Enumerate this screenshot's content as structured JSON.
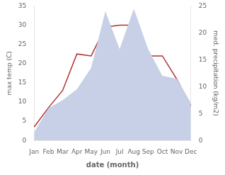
{
  "chart_data": {
    "type": "line",
    "categories": [
      "Jan",
      "Feb",
      "Mar",
      "Apr",
      "May",
      "Jun",
      "Jul",
      "Aug",
      "Sep",
      "Oct",
      "Nov",
      "Dec"
    ],
    "xlabel": "date (month)",
    "ylabel": "max temp (C)",
    "y2label": "med. precipitation (kg/m2)",
    "series": [
      {
        "type": "area",
        "axis": "y2",
        "color": "#c8d0e8",
        "values": [
          1.5,
          6.0,
          7.5,
          9.5,
          13.5,
          24.0,
          17.0,
          24.5,
          17.0,
          12.0,
          11.5,
          7.0
        ]
      },
      {
        "type": "line",
        "color": "#b03030",
        "values": [
          3.5,
          8.5,
          13.0,
          22.5,
          22.0,
          29.5,
          30.0,
          30.0,
          22.0,
          22.0,
          16.0,
          9.0
        ]
      }
    ],
    "ylim": [
      0,
      35
    ],
    "yticks": [
      0,
      5,
      10,
      15,
      20,
      25,
      30,
      35
    ],
    "y2lim": [
      0,
      25
    ],
    "y2ticks": [
      0,
      5,
      10,
      15,
      20,
      25
    ],
    "grid": false
  }
}
